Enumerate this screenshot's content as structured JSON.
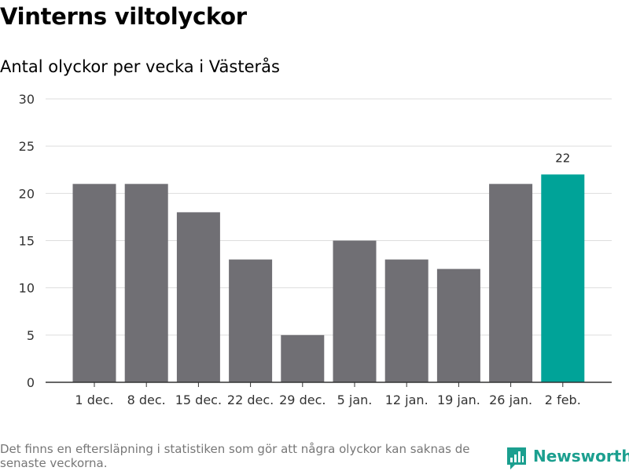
{
  "title": "Vinterns viltolyckor",
  "subtitle": "Antal olyckor per vecka i Västerås",
  "footer_note": "Det finns en eftersläpning i statistiken som gör att några olyckor kan saknas de senaste veckorna.",
  "brand": "Newsworthy",
  "colors": {
    "bar": "#706f74",
    "highlight": "#00a398",
    "grid": "#dddddd",
    "axis": "#333333",
    "brand": "#1b9f8f"
  },
  "chart_data": {
    "type": "bar",
    "categories": [
      "1 dec.",
      "8 dec.",
      "15 dec.",
      "22 dec.",
      "29 dec.",
      "5 jan.",
      "12 jan.",
      "19 jan.",
      "26 jan.",
      "2 feb."
    ],
    "values": [
      21,
      21,
      18,
      13,
      5,
      15,
      13,
      12,
      21,
      22
    ],
    "highlight_index": 9,
    "data_labels": [
      {
        "index": 9,
        "text": "22"
      }
    ],
    "yticks": [
      0,
      5,
      10,
      15,
      20,
      25,
      30
    ],
    "ylim": [
      0,
      30
    ],
    "grid": true,
    "legend": "none"
  }
}
